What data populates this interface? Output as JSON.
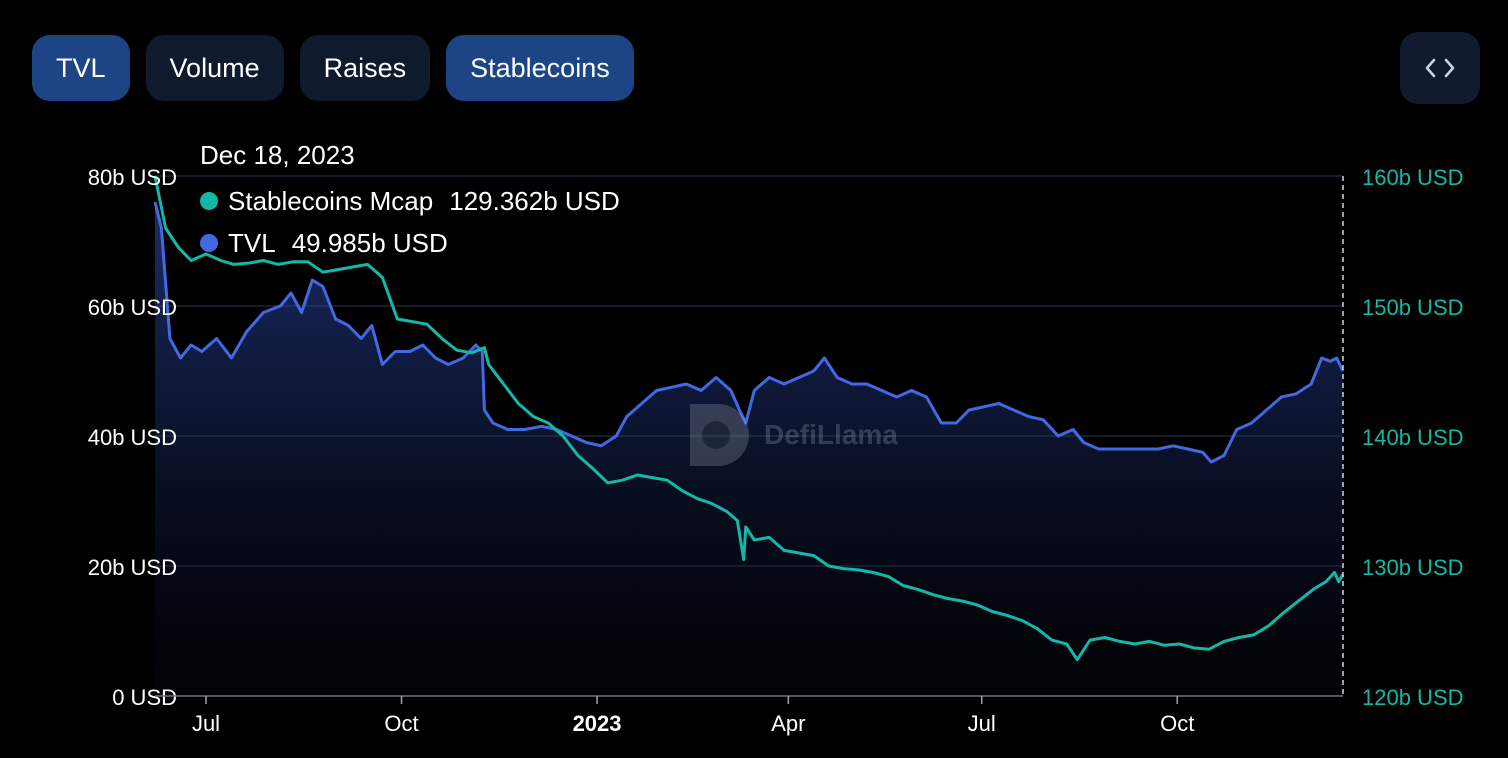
{
  "tabs": [
    {
      "label": "TVL",
      "active": true
    },
    {
      "label": "Volume",
      "active": false
    },
    {
      "label": "Raises",
      "active": false
    },
    {
      "label": "Stablecoins",
      "active": true
    }
  ],
  "embed_icon": "code-brackets-icon",
  "tooltip": {
    "date": "Dec 18, 2023",
    "rows": [
      {
        "name": "Stablecoins Mcap",
        "value": "129.362b USD",
        "color": "#14b8a6"
      },
      {
        "name": "TVL",
        "value": "49.985b USD",
        "color": "#4169e1"
      }
    ]
  },
  "watermark": "DefiLlama",
  "chart_data": {
    "type": "area",
    "x_ticks": [
      {
        "label": "Jul",
        "date": "2022-07-01",
        "bold": false
      },
      {
        "label": "Oct",
        "date": "2022-10-01",
        "bold": false
      },
      {
        "label": "2023",
        "date": "2023-01-01",
        "bold": true
      },
      {
        "label": "Apr",
        "date": "2023-04-01",
        "bold": false
      },
      {
        "label": "Jul",
        "date": "2023-07-01",
        "bold": false
      },
      {
        "label": "Oct",
        "date": "2023-10-01",
        "bold": false
      }
    ],
    "xlim": [
      "2022-06-07",
      "2023-12-18"
    ],
    "y_left": {
      "ticks": [
        "0 USD",
        "20b USD",
        "40b USD",
        "60b USD",
        "80b USD"
      ],
      "min": 0,
      "max": 80,
      "unit": "b USD"
    },
    "y_right": {
      "ticks": [
        "120b USD",
        "130b USD",
        "140b USD",
        "150b USD",
        "160b USD"
      ],
      "min": 120,
      "max": 160,
      "unit": "b USD"
    },
    "series": [
      {
        "name": "TVL",
        "axis": "left",
        "color": "#4169e1",
        "fill": true,
        "points": [
          [
            "2022-06-07",
            76
          ],
          [
            "2022-06-10",
            72
          ],
          [
            "2022-06-14",
            55
          ],
          [
            "2022-06-19",
            52
          ],
          [
            "2022-06-24",
            54
          ],
          [
            "2022-06-29",
            53
          ],
          [
            "2022-07-06",
            55
          ],
          [
            "2022-07-13",
            52
          ],
          [
            "2022-07-20",
            56
          ],
          [
            "2022-07-28",
            59
          ],
          [
            "2022-08-05",
            60
          ],
          [
            "2022-08-10",
            62
          ],
          [
            "2022-08-15",
            59
          ],
          [
            "2022-08-20",
            64
          ],
          [
            "2022-08-25",
            63
          ],
          [
            "2022-08-31",
            58
          ],
          [
            "2022-09-06",
            57
          ],
          [
            "2022-09-12",
            55
          ],
          [
            "2022-09-17",
            57
          ],
          [
            "2022-09-22",
            51
          ],
          [
            "2022-09-28",
            53
          ],
          [
            "2022-10-05",
            53
          ],
          [
            "2022-10-11",
            54
          ],
          [
            "2022-10-17",
            52
          ],
          [
            "2022-10-23",
            51
          ],
          [
            "2022-10-30",
            52
          ],
          [
            "2022-11-05",
            54
          ],
          [
            "2022-11-08",
            53
          ],
          [
            "2022-11-09",
            44
          ],
          [
            "2022-11-13",
            42
          ],
          [
            "2022-11-20",
            41
          ],
          [
            "2022-11-28",
            41
          ],
          [
            "2022-12-06",
            41.5
          ],
          [
            "2022-12-13",
            41
          ],
          [
            "2022-12-20",
            40
          ],
          [
            "2022-12-27",
            39
          ],
          [
            "2023-01-03",
            38.5
          ],
          [
            "2023-01-10",
            40
          ],
          [
            "2023-01-15",
            43
          ],
          [
            "2023-01-22",
            45
          ],
          [
            "2023-01-29",
            47
          ],
          [
            "2023-02-05",
            47.5
          ],
          [
            "2023-02-12",
            48
          ],
          [
            "2023-02-19",
            47
          ],
          [
            "2023-02-26",
            49
          ],
          [
            "2023-03-05",
            47
          ],
          [
            "2023-03-09",
            44
          ],
          [
            "2023-03-12",
            42
          ],
          [
            "2023-03-16",
            47
          ],
          [
            "2023-03-23",
            49
          ],
          [
            "2023-03-30",
            48
          ],
          [
            "2023-04-06",
            49
          ],
          [
            "2023-04-13",
            50
          ],
          [
            "2023-04-18",
            52
          ],
          [
            "2023-04-24",
            49
          ],
          [
            "2023-05-01",
            48
          ],
          [
            "2023-05-08",
            48
          ],
          [
            "2023-05-15",
            47
          ],
          [
            "2023-05-22",
            46
          ],
          [
            "2023-05-29",
            47
          ],
          [
            "2023-06-05",
            46
          ],
          [
            "2023-06-12",
            42
          ],
          [
            "2023-06-19",
            42
          ],
          [
            "2023-06-25",
            44
          ],
          [
            "2023-07-02",
            44.5
          ],
          [
            "2023-07-09",
            45
          ],
          [
            "2023-07-16",
            44
          ],
          [
            "2023-07-23",
            43
          ],
          [
            "2023-07-30",
            42.5
          ],
          [
            "2023-08-06",
            40
          ],
          [
            "2023-08-13",
            41
          ],
          [
            "2023-08-18",
            39
          ],
          [
            "2023-08-25",
            38
          ],
          [
            "2023-09-01",
            38
          ],
          [
            "2023-09-08",
            38
          ],
          [
            "2023-09-15",
            38
          ],
          [
            "2023-09-22",
            38
          ],
          [
            "2023-09-29",
            38.5
          ],
          [
            "2023-10-06",
            38
          ],
          [
            "2023-10-13",
            37.5
          ],
          [
            "2023-10-17",
            36
          ],
          [
            "2023-10-23",
            37
          ],
          [
            "2023-10-29",
            41
          ],
          [
            "2023-11-05",
            42
          ],
          [
            "2023-11-12",
            44
          ],
          [
            "2023-11-19",
            46
          ],
          [
            "2023-11-26",
            46.5
          ],
          [
            "2023-12-03",
            48
          ],
          [
            "2023-12-08",
            52
          ],
          [
            "2023-12-12",
            51.5
          ],
          [
            "2023-12-15",
            52
          ],
          [
            "2023-12-18",
            49.985
          ]
        ]
      },
      {
        "name": "Stablecoins Mcap",
        "axis": "right",
        "color": "#14b8a6",
        "fill": false,
        "points": [
          [
            "2022-06-07",
            160
          ],
          [
            "2022-06-12",
            156
          ],
          [
            "2022-06-18",
            154.5
          ],
          [
            "2022-06-24",
            153.5
          ],
          [
            "2022-07-01",
            154
          ],
          [
            "2022-07-08",
            153.5
          ],
          [
            "2022-07-14",
            153.2
          ],
          [
            "2022-07-21",
            153.3
          ],
          [
            "2022-07-28",
            153.5
          ],
          [
            "2022-08-04",
            153.2
          ],
          [
            "2022-08-11",
            153.4
          ],
          [
            "2022-08-18",
            153.4
          ],
          [
            "2022-08-25",
            152.6
          ],
          [
            "2022-09-01",
            152.8
          ],
          [
            "2022-09-08",
            153
          ],
          [
            "2022-09-15",
            153.2
          ],
          [
            "2022-09-22",
            152.2
          ],
          [
            "2022-09-29",
            149
          ],
          [
            "2022-10-06",
            148.8
          ],
          [
            "2022-10-13",
            148.6
          ],
          [
            "2022-10-20",
            147.5
          ],
          [
            "2022-10-27",
            146.6
          ],
          [
            "2022-11-03",
            146.4
          ],
          [
            "2022-11-09",
            146.8
          ],
          [
            "2022-11-11",
            145.5
          ],
          [
            "2022-11-18",
            144
          ],
          [
            "2022-11-25",
            142.5
          ],
          [
            "2022-12-02",
            141.5
          ],
          [
            "2022-12-09",
            141
          ],
          [
            "2022-12-16",
            140
          ],
          [
            "2022-12-23",
            138.5
          ],
          [
            "2022-12-30",
            137.5
          ],
          [
            "2023-01-06",
            136.4
          ],
          [
            "2023-01-13",
            136.6
          ],
          [
            "2023-01-20",
            137
          ],
          [
            "2023-01-27",
            136.8
          ],
          [
            "2023-02-03",
            136.6
          ],
          [
            "2023-02-10",
            135.8
          ],
          [
            "2023-02-17",
            135.2
          ],
          [
            "2023-02-24",
            134.8
          ],
          [
            "2023-03-03",
            134.2
          ],
          [
            "2023-03-08",
            133.5
          ],
          [
            "2023-03-11",
            130.5
          ],
          [
            "2023-03-12",
            133
          ],
          [
            "2023-03-16",
            132
          ],
          [
            "2023-03-23",
            132.2
          ],
          [
            "2023-03-30",
            131.2
          ],
          [
            "2023-04-06",
            131
          ],
          [
            "2023-04-13",
            130.8
          ],
          [
            "2023-04-20",
            130
          ],
          [
            "2023-04-27",
            129.8
          ],
          [
            "2023-05-04",
            129.7
          ],
          [
            "2023-05-11",
            129.5
          ],
          [
            "2023-05-18",
            129.2
          ],
          [
            "2023-05-25",
            128.5
          ],
          [
            "2023-06-01",
            128.2
          ],
          [
            "2023-06-08",
            127.8
          ],
          [
            "2023-06-15",
            127.5
          ],
          [
            "2023-06-22",
            127.3
          ],
          [
            "2023-06-29",
            127
          ],
          [
            "2023-07-06",
            126.5
          ],
          [
            "2023-07-13",
            126.2
          ],
          [
            "2023-07-20",
            125.8
          ],
          [
            "2023-07-27",
            125.2
          ],
          [
            "2023-08-03",
            124.3
          ],
          [
            "2023-08-10",
            124
          ],
          [
            "2023-08-15",
            122.8
          ],
          [
            "2023-08-21",
            124.3
          ],
          [
            "2023-08-28",
            124.5
          ],
          [
            "2023-09-04",
            124.2
          ],
          [
            "2023-09-11",
            124
          ],
          [
            "2023-09-18",
            124.2
          ],
          [
            "2023-09-25",
            123.9
          ],
          [
            "2023-10-02",
            124
          ],
          [
            "2023-10-09",
            123.7
          ],
          [
            "2023-10-16",
            123.6
          ],
          [
            "2023-10-23",
            124.2
          ],
          [
            "2023-10-30",
            124.5
          ],
          [
            "2023-11-06",
            124.7
          ],
          [
            "2023-11-13",
            125.4
          ],
          [
            "2023-11-20",
            126.4
          ],
          [
            "2023-11-27",
            127.3
          ],
          [
            "2023-12-04",
            128.2
          ],
          [
            "2023-12-10",
            128.8
          ],
          [
            "2023-12-14",
            129.5
          ],
          [
            "2023-12-16",
            128.8
          ],
          [
            "2023-12-18",
            129.362
          ]
        ]
      }
    ],
    "grid": true,
    "crosshair_date": "2023-12-18"
  }
}
